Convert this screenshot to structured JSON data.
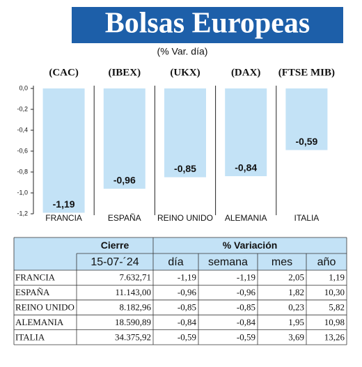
{
  "chart_data": {
    "type": "bar",
    "title": "Bolsas Europeas",
    "subtitle": "(% Var. día)",
    "indices": [
      "(CAC)",
      "(IBEX)",
      "(UKX)",
      "(DAX)",
      "(FTSE MIB)"
    ],
    "categories": [
      "FRANCIA",
      "ESPAÑA",
      "REINO UNIDO",
      "ALEMANIA",
      "ITALIA"
    ],
    "values": [
      -1.19,
      -0.96,
      -0.85,
      -0.84,
      -0.59
    ],
    "value_labels": [
      "-1,19",
      "-0,96",
      "-0,85",
      "-0,84",
      "-0,59"
    ],
    "color": "#c3e2f6",
    "ylim": [
      -1.2,
      0
    ],
    "yticks": [
      {
        "value": 0,
        "label": "0,0"
      },
      {
        "value": -0.2,
        "label": "-0,2"
      },
      {
        "value": -0.4,
        "label": "-0,4"
      },
      {
        "value": -0.6,
        "label": "-0,6"
      },
      {
        "value": -0.8,
        "label": "-0,8"
      },
      {
        "value": -1.0,
        "label": "-1,0"
      },
      {
        "value": -1.2,
        "label": "-1,2"
      }
    ],
    "grid": false
  },
  "table": {
    "group_headers": [
      "Cierre",
      "% Variación"
    ],
    "columns": [
      "15-07-´24",
      "día",
      "semana",
      "mes",
      "año"
    ],
    "rows": [
      [
        "FRANCIA",
        "7.632,71",
        "-1,19",
        "-1,19",
        "2,05",
        "1,19"
      ],
      [
        "ESPAÑA",
        "11.143,00",
        "-0,96",
        "-0,96",
        "1,82",
        "10,30"
      ],
      [
        "REINO UNIDO",
        "8.182,96",
        "-0,85",
        "-0,85",
        "0,23",
        "5,82"
      ],
      [
        "ALEMANIA",
        "18.590,89",
        "-0,84",
        "-0,84",
        "1,95",
        "10,98"
      ],
      [
        "ITALIA",
        "34.375,92",
        "-0,59",
        "-0,59",
        "3,69",
        "13,26"
      ]
    ]
  }
}
